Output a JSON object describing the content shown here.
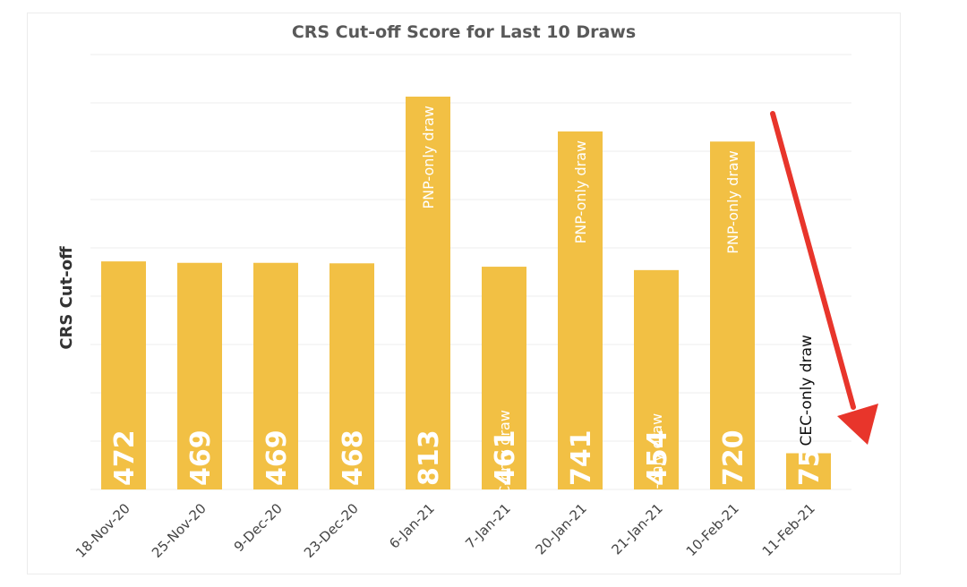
{
  "chart_data": {
    "type": "bar",
    "title": "CRS Cut-off Score for Last 10 Draws",
    "ylabel": "CRS Cut-off",
    "xlabel": "",
    "categories": [
      "18-Nov-20",
      "25-Nov-20",
      "9-Dec-20",
      "23-Dec-20",
      "6-Jan-21",
      "7-Jan-21",
      "20-Jan-21",
      "21-Jan-21",
      "10-Feb-21",
      "11-Feb-21"
    ],
    "values": [
      472,
      469,
      469,
      468,
      813,
      461,
      741,
      454,
      720,
      75
    ],
    "data_labels": [
      "472",
      "469",
      "469",
      "468",
      "813",
      "461",
      "741",
      "454",
      "720",
      "75"
    ],
    "annotations": [
      "",
      "",
      "",
      "",
      "PNP-only draw",
      "CEC-only draw",
      "PNP-only draw",
      "CEC-only draw",
      "PNP-only draw",
      "CEC-only draw"
    ],
    "ylim": [
      0,
      900
    ],
    "grid": true,
    "legend": "none",
    "colors": {
      "bar": "#F2C044",
      "grid": "#ececec",
      "arrow": "#E8352B"
    }
  }
}
